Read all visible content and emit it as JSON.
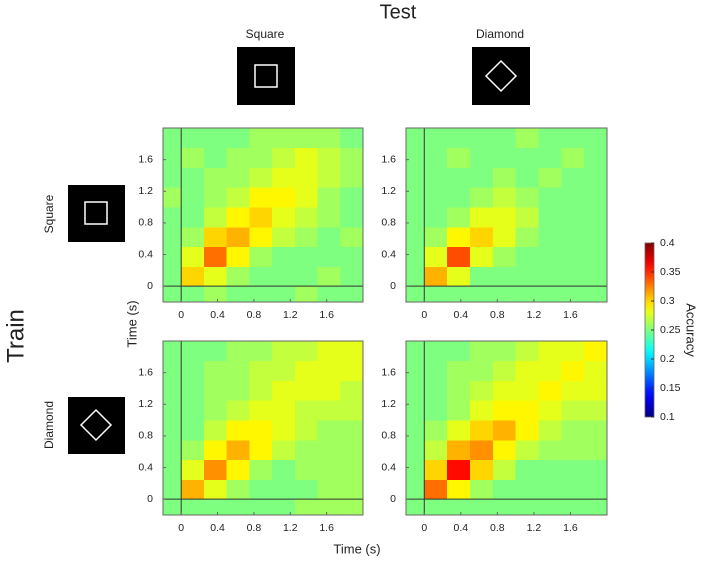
{
  "title": "Test",
  "row_title": "Train",
  "column_labels": [
    "Square",
    "Diamond"
  ],
  "row_labels": [
    "Square",
    "Diamond"
  ],
  "xlabel": "Time (s)",
  "ylabel": "Time (s)",
  "colorbar": {
    "label": "Accuracy",
    "lim": [
      0.1,
      0.4
    ],
    "ticks": [
      0.1,
      0.15,
      0.2,
      0.25,
      0.3,
      0.35,
      0.4
    ],
    "colormap": "jet"
  },
  "chart_data": [
    {
      "type": "heatmap",
      "xlim": [
        -0.2,
        2.0
      ],
      "ylim": [
        -0.2,
        2.0
      ],
      "xticks": [
        0,
        0.4,
        0.8,
        1.2,
        1.6
      ],
      "yticks": [
        0,
        0.4,
        0.8,
        1.2,
        1.6
      ],
      "zero_lines": true,
      "x_edges": [
        -0.2,
        0,
        0.25,
        0.5,
        0.75,
        1.0,
        1.25,
        1.5,
        1.75,
        2.0
      ],
      "y_edges": [
        -0.2,
        0,
        0.25,
        0.5,
        0.75,
        1.0,
        1.25,
        1.5,
        1.75,
        2.0
      ],
      "z": [
        [
          0.25,
          0.25,
          0.26,
          0.25,
          0.25,
          0.25,
          0.26,
          0.25,
          0.25
        ],
        [
          0.25,
          0.3,
          0.28,
          0.26,
          0.25,
          0.25,
          0.25,
          0.26,
          0.25
        ],
        [
          0.25,
          0.28,
          0.33,
          0.29,
          0.26,
          0.25,
          0.25,
          0.25,
          0.25
        ],
        [
          0.25,
          0.26,
          0.3,
          0.31,
          0.29,
          0.27,
          0.26,
          0.25,
          0.26
        ],
        [
          0.25,
          0.25,
          0.27,
          0.29,
          0.3,
          0.28,
          0.27,
          0.26,
          0.25
        ],
        [
          0.26,
          0.25,
          0.26,
          0.27,
          0.29,
          0.29,
          0.28,
          0.26,
          0.25
        ],
        [
          0.25,
          0.25,
          0.26,
          0.26,
          0.27,
          0.28,
          0.28,
          0.27,
          0.26
        ],
        [
          0.25,
          0.26,
          0.25,
          0.26,
          0.26,
          0.27,
          0.28,
          0.27,
          0.26
        ],
        [
          0.25,
          0.25,
          0.25,
          0.25,
          0.26,
          0.26,
          0.26,
          0.26,
          0.25
        ]
      ]
    },
    {
      "type": "heatmap",
      "xlim": [
        -0.2,
        2.0
      ],
      "ylim": [
        -0.2,
        2.0
      ],
      "xticks": [
        0,
        0.4,
        0.8,
        1.2,
        1.6
      ],
      "yticks": [
        0,
        0.4,
        0.8,
        1.2,
        1.6
      ],
      "zero_lines": true,
      "x_edges": [
        -0.2,
        0,
        0.25,
        0.5,
        0.75,
        1.0,
        1.25,
        1.5,
        1.75,
        2.0
      ],
      "y_edges": [
        -0.2,
        0,
        0.25,
        0.5,
        0.75,
        1.0,
        1.25,
        1.5,
        1.75,
        2.0
      ],
      "z": [
        [
          0.25,
          0.25,
          0.25,
          0.25,
          0.25,
          0.25,
          0.25,
          0.25,
          0.25
        ],
        [
          0.25,
          0.31,
          0.28,
          0.25,
          0.25,
          0.25,
          0.25,
          0.25,
          0.25
        ],
        [
          0.25,
          0.28,
          0.34,
          0.28,
          0.26,
          0.25,
          0.25,
          0.25,
          0.25
        ],
        [
          0.25,
          0.26,
          0.29,
          0.3,
          0.28,
          0.26,
          0.25,
          0.25,
          0.25
        ],
        [
          0.25,
          0.25,
          0.26,
          0.28,
          0.28,
          0.27,
          0.25,
          0.25,
          0.25
        ],
        [
          0.25,
          0.25,
          0.25,
          0.26,
          0.27,
          0.26,
          0.25,
          0.25,
          0.25
        ],
        [
          0.25,
          0.25,
          0.25,
          0.25,
          0.26,
          0.25,
          0.26,
          0.25,
          0.25
        ],
        [
          0.25,
          0.25,
          0.26,
          0.25,
          0.25,
          0.25,
          0.25,
          0.26,
          0.25
        ],
        [
          0.25,
          0.25,
          0.25,
          0.25,
          0.25,
          0.26,
          0.25,
          0.25,
          0.25
        ]
      ]
    },
    {
      "type": "heatmap",
      "xlim": [
        -0.2,
        2.0
      ],
      "ylim": [
        -0.2,
        2.0
      ],
      "xticks": [
        0,
        0.4,
        0.8,
        1.2,
        1.6
      ],
      "yticks": [
        0,
        0.4,
        0.8,
        1.2,
        1.6
      ],
      "zero_lines": true,
      "x_edges": [
        -0.2,
        0,
        0.25,
        0.5,
        0.75,
        1.0,
        1.25,
        1.5,
        1.75,
        2.0
      ],
      "y_edges": [
        -0.2,
        0,
        0.25,
        0.5,
        0.75,
        1.0,
        1.25,
        1.5,
        1.75,
        2.0
      ],
      "z": [
        [
          0.25,
          0.25,
          0.25,
          0.25,
          0.25,
          0.25,
          0.26,
          0.26,
          0.26
        ],
        [
          0.25,
          0.31,
          0.28,
          0.26,
          0.25,
          0.25,
          0.25,
          0.26,
          0.26
        ],
        [
          0.25,
          0.28,
          0.32,
          0.29,
          0.26,
          0.25,
          0.26,
          0.26,
          0.26
        ],
        [
          0.25,
          0.26,
          0.29,
          0.31,
          0.29,
          0.27,
          0.26,
          0.26,
          0.26
        ],
        [
          0.25,
          0.25,
          0.27,
          0.29,
          0.29,
          0.28,
          0.27,
          0.26,
          0.26
        ],
        [
          0.25,
          0.25,
          0.26,
          0.27,
          0.28,
          0.28,
          0.27,
          0.27,
          0.27
        ],
        [
          0.25,
          0.25,
          0.26,
          0.26,
          0.27,
          0.28,
          0.28,
          0.28,
          0.27
        ],
        [
          0.25,
          0.25,
          0.26,
          0.26,
          0.27,
          0.27,
          0.28,
          0.28,
          0.28
        ],
        [
          0.25,
          0.25,
          0.25,
          0.26,
          0.26,
          0.27,
          0.27,
          0.28,
          0.28
        ]
      ]
    },
    {
      "type": "heatmap",
      "xlim": [
        -0.2,
        2.0
      ],
      "ylim": [
        -0.2,
        2.0
      ],
      "xticks": [
        0,
        0.4,
        0.8,
        1.2,
        1.6
      ],
      "yticks": [
        0,
        0.4,
        0.8,
        1.2,
        1.6
      ],
      "zero_lines": true,
      "x_edges": [
        -0.2,
        0,
        0.25,
        0.5,
        0.75,
        1.0,
        1.25,
        1.5,
        1.75,
        2.0
      ],
      "y_edges": [
        -0.2,
        0,
        0.25,
        0.5,
        0.75,
        1.0,
        1.25,
        1.5,
        1.75,
        2.0
      ],
      "z": [
        [
          0.25,
          0.25,
          0.25,
          0.25,
          0.25,
          0.25,
          0.25,
          0.25,
          0.25
        ],
        [
          0.25,
          0.33,
          0.29,
          0.26,
          0.25,
          0.25,
          0.25,
          0.25,
          0.25
        ],
        [
          0.25,
          0.3,
          0.36,
          0.3,
          0.27,
          0.25,
          0.25,
          0.25,
          0.25
        ],
        [
          0.25,
          0.27,
          0.31,
          0.32,
          0.29,
          0.27,
          0.26,
          0.26,
          0.26
        ],
        [
          0.25,
          0.26,
          0.28,
          0.3,
          0.31,
          0.29,
          0.27,
          0.26,
          0.26
        ],
        [
          0.25,
          0.25,
          0.26,
          0.28,
          0.29,
          0.29,
          0.28,
          0.27,
          0.27
        ],
        [
          0.25,
          0.25,
          0.26,
          0.27,
          0.28,
          0.28,
          0.29,
          0.28,
          0.28
        ],
        [
          0.25,
          0.25,
          0.26,
          0.26,
          0.27,
          0.28,
          0.28,
          0.29,
          0.28
        ],
        [
          0.25,
          0.25,
          0.25,
          0.26,
          0.26,
          0.27,
          0.28,
          0.28,
          0.29
        ]
      ]
    }
  ]
}
